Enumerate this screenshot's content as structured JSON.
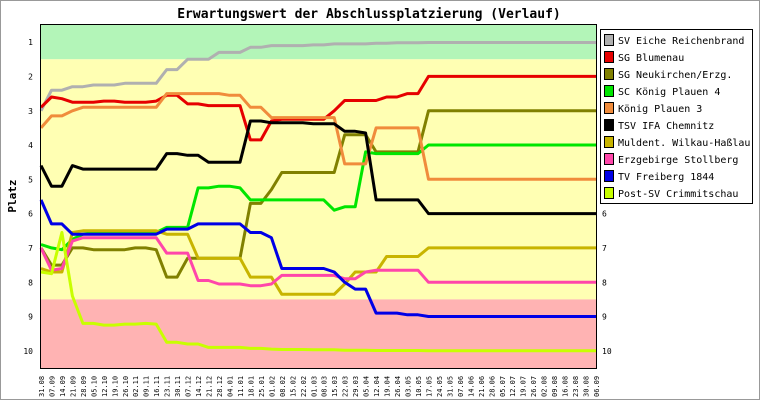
{
  "chart_data": {
    "type": "line",
    "title": "Erwartungswert der Abschlussplatzierung (Verlauf)",
    "ylabel": "Platz",
    "xlabel": "",
    "ylim": [
      1,
      10
    ],
    "y_inverted": true,
    "y_ticks": [
      "1",
      "2",
      "3",
      "4",
      "5",
      "6",
      "7",
      "8",
      "9",
      "10"
    ],
    "grid": false,
    "legend_position": "right",
    "zones": [
      {
        "from": 0.5,
        "to": 1.5,
        "color": "#b3f5b8"
      },
      {
        "from": 1.5,
        "to": 8.5,
        "color": "#ffffb3"
      },
      {
        "from": 8.5,
        "to": 10.5,
        "color": "#ffb3b3"
      }
    ],
    "x": [
      "31.08",
      "07.09",
      "14.09",
      "21.09",
      "28.09",
      "05.10",
      "12.10",
      "19.10",
      "26.10",
      "02.11",
      "09.11",
      "16.11",
      "23.11",
      "30.11",
      "07.12",
      "14.12",
      "21.12",
      "28.12",
      "04.01",
      "11.01",
      "18.01",
      "25.01",
      "01.02",
      "08.02",
      "15.02",
      "22.02",
      "01.03",
      "08.03",
      "15.03",
      "22.03",
      "29.03",
      "05.04",
      "12.04",
      "19.04",
      "26.04",
      "03.05",
      "10.05",
      "17.05",
      "24.05",
      "31.05",
      "07.06",
      "14.06",
      "21.06",
      "28.06",
      "05.07",
      "12.07",
      "19.07",
      "26.07",
      "02.08",
      "09.08",
      "16.08",
      "23.08",
      "30.08",
      "06.09"
    ],
    "series": [
      {
        "name": "SV Eiche Reichenbrand",
        "color": "#b0b0b0",
        "values": [
          3.0,
          2.4,
          2.4,
          2.3,
          2.3,
          2.25,
          2.25,
          2.25,
          2.2,
          2.2,
          2.2,
          2.2,
          1.8,
          1.8,
          1.5,
          1.5,
          1.5,
          1.3,
          1.3,
          1.3,
          1.15,
          1.15,
          1.1,
          1.1,
          1.1,
          1.1,
          1.08,
          1.08,
          1.05,
          1.05,
          1.05,
          1.05,
          1.03,
          1.03,
          1.02,
          1.02,
          1.02,
          1.01,
          1.01,
          1.01,
          1.01,
          1.01,
          1.01,
          1.01,
          1.01,
          1.01,
          1.01,
          1.01,
          1.01,
          1.01,
          1.01,
          1.01,
          1.01,
          1.01
        ]
      },
      {
        "name": "SG Blumenau",
        "color": "#e60000",
        "values": [
          2.9,
          2.6,
          2.65,
          2.75,
          2.75,
          2.75,
          2.72,
          2.72,
          2.75,
          2.75,
          2.75,
          2.72,
          2.55,
          2.55,
          2.8,
          2.8,
          2.85,
          2.85,
          2.85,
          2.85,
          3.85,
          3.85,
          3.3,
          3.25,
          3.25,
          3.25,
          3.25,
          3.25,
          3.0,
          2.7,
          2.7,
          2.7,
          2.7,
          2.6,
          2.6,
          2.5,
          2.5,
          2.0,
          2.0,
          2.0,
          2.0,
          2.0,
          2.0,
          2.0,
          2.0,
          2.0,
          2.0,
          2.0,
          2.0,
          2.0,
          2.0,
          2.0,
          2.0,
          2.0
        ]
      },
      {
        "name": "SG Neukirchen/Erzg.",
        "color": "#808000",
        "values": [
          7.0,
          7.5,
          7.5,
          7.0,
          7.0,
          7.05,
          7.05,
          7.05,
          7.05,
          7.0,
          7.0,
          7.05,
          7.85,
          7.85,
          7.3,
          7.3,
          7.3,
          7.3,
          7.3,
          7.3,
          5.7,
          5.7,
          5.3,
          4.8,
          4.8,
          4.8,
          4.8,
          4.8,
          4.8,
          3.7,
          3.7,
          3.7,
          4.2,
          4.2,
          4.2,
          4.2,
          4.2,
          3.0,
          3.0,
          3.0,
          3.0,
          3.0,
          3.0,
          3.0,
          3.0,
          3.0,
          3.0,
          3.0,
          3.0,
          3.0,
          3.0,
          3.0,
          3.0,
          3.0
        ]
      },
      {
        "name": "SC König Plauen 4",
        "color": "#00e600",
        "values": [
          6.9,
          7.0,
          7.05,
          6.75,
          6.6,
          6.55,
          6.55,
          6.55,
          6.55,
          6.55,
          6.55,
          6.55,
          6.4,
          6.4,
          6.4,
          5.25,
          5.25,
          5.2,
          5.2,
          5.25,
          5.6,
          5.6,
          5.6,
          5.6,
          5.6,
          5.6,
          5.6,
          5.6,
          5.9,
          5.8,
          5.8,
          4.2,
          4.25,
          4.25,
          4.25,
          4.25,
          4.25,
          4.0,
          4.0,
          4.0,
          4.0,
          4.0,
          4.0,
          4.0,
          4.0,
          4.0,
          4.0,
          4.0,
          4.0,
          4.0,
          4.0,
          4.0,
          4.0,
          4.0
        ]
      },
      {
        "name": "König Plauen 3",
        "color": "#f08c3c",
        "values": [
          3.5,
          3.15,
          3.15,
          3.0,
          2.9,
          2.9,
          2.9,
          2.9,
          2.9,
          2.9,
          2.9,
          2.9,
          2.5,
          2.5,
          2.5,
          2.5,
          2.5,
          2.5,
          2.55,
          2.55,
          2.9,
          2.9,
          3.2,
          3.2,
          3.2,
          3.2,
          3.2,
          3.2,
          3.2,
          4.55,
          4.55,
          4.55,
          3.5,
          3.5,
          3.5,
          3.5,
          3.5,
          5.0,
          5.0,
          5.0,
          5.0,
          5.0,
          5.0,
          5.0,
          5.0,
          5.0,
          5.0,
          5.0,
          5.0,
          5.0,
          5.0,
          5.0,
          5.0,
          5.0
        ]
      },
      {
        "name": "TSV IFA Chemnitz",
        "color": "#000000",
        "values": [
          4.6,
          5.2,
          5.2,
          4.6,
          4.7,
          4.7,
          4.7,
          4.7,
          4.7,
          4.7,
          4.7,
          4.7,
          4.25,
          4.25,
          4.3,
          4.3,
          4.5,
          4.5,
          4.5,
          4.5,
          3.3,
          3.3,
          3.35,
          3.35,
          3.35,
          3.35,
          3.38,
          3.38,
          3.38,
          3.6,
          3.6,
          3.65,
          5.6,
          5.6,
          5.6,
          5.6,
          5.6,
          6.0,
          6.0,
          6.0,
          6.0,
          6.0,
          6.0,
          6.0,
          6.0,
          6.0,
          6.0,
          6.0,
          6.0,
          6.0,
          6.0,
          6.0,
          6.0,
          6.0
        ]
      },
      {
        "name": "Muldent. Wilkau-Haßlau",
        "color": "#c8b400",
        "values": [
          7.6,
          7.7,
          7.7,
          6.55,
          6.5,
          6.5,
          6.5,
          6.5,
          6.5,
          6.5,
          6.5,
          6.5,
          6.6,
          6.6,
          6.6,
          7.3,
          7.3,
          7.3,
          7.3,
          7.3,
          7.85,
          7.85,
          7.85,
          8.35,
          8.35,
          8.35,
          8.35,
          8.35,
          8.35,
          8.05,
          7.7,
          7.7,
          7.7,
          7.25,
          7.25,
          7.25,
          7.25,
          7.0,
          7.0,
          7.0,
          7.0,
          7.0,
          7.0,
          7.0,
          7.0,
          7.0,
          7.0,
          7.0,
          7.0,
          7.0,
          7.0,
          7.0,
          7.0,
          7.0
        ]
      },
      {
        "name": "Erzgebirge Stollberg",
        "color": "#ff46aa",
        "values": [
          7.0,
          7.65,
          7.6,
          6.8,
          6.7,
          6.7,
          6.7,
          6.7,
          6.7,
          6.7,
          6.7,
          6.7,
          7.15,
          7.15,
          7.15,
          7.95,
          7.95,
          8.05,
          8.05,
          8.05,
          8.1,
          8.1,
          8.05,
          7.8,
          7.8,
          7.8,
          7.8,
          7.8,
          7.8,
          7.9,
          7.9,
          7.7,
          7.65,
          7.65,
          7.65,
          7.65,
          7.65,
          8.0,
          8.0,
          8.0,
          8.0,
          8.0,
          8.0,
          8.0,
          8.0,
          8.0,
          8.0,
          8.0,
          8.0,
          8.0,
          8.0,
          8.0,
          8.0,
          8.0
        ]
      },
      {
        "name": "TV Freiberg 1844",
        "color": "#0000e6",
        "values": [
          5.6,
          6.3,
          6.3,
          6.6,
          6.6,
          6.6,
          6.6,
          6.6,
          6.6,
          6.6,
          6.6,
          6.6,
          6.45,
          6.45,
          6.45,
          6.3,
          6.3,
          6.3,
          6.3,
          6.3,
          6.55,
          6.55,
          6.7,
          7.6,
          7.6,
          7.6,
          7.6,
          7.6,
          7.7,
          8.0,
          8.2,
          8.2,
          8.9,
          8.9,
          8.9,
          8.95,
          8.95,
          9.0,
          9.0,
          9.0,
          9.0,
          9.0,
          9.0,
          9.0,
          9.0,
          9.0,
          9.0,
          9.0,
          9.0,
          9.0,
          9.0,
          9.0,
          9.0,
          9.0
        ]
      },
      {
        "name": "Post-SV Crimmitschau",
        "color": "#c8ff00",
        "values": [
          7.7,
          7.75,
          6.55,
          8.4,
          9.2,
          9.2,
          9.25,
          9.25,
          9.22,
          9.22,
          9.2,
          9.22,
          9.75,
          9.75,
          9.8,
          9.8,
          9.9,
          9.9,
          9.9,
          9.9,
          9.93,
          9.93,
          9.95,
          9.96,
          9.96,
          9.96,
          9.97,
          9.97,
          9.97,
          9.98,
          9.98,
          9.98,
          9.99,
          9.99,
          9.99,
          9.99,
          9.99,
          10.0,
          10.0,
          10.0,
          10.0,
          10.0,
          10.0,
          10.0,
          10.0,
          10.0,
          10.0,
          10.0,
          10.0,
          10.0,
          10.0,
          10.0,
          10.0,
          10.0
        ]
      }
    ]
  }
}
